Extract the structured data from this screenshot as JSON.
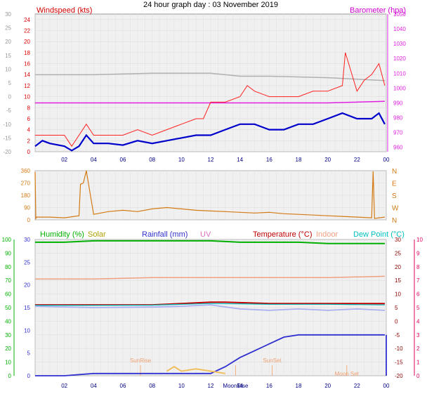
{
  "title": "24 hour graph day : 03 November 2019",
  "colors": {
    "wind": "#e00000",
    "gust": "#ff2020",
    "avg": "#0000cc",
    "baro": "#e020e0",
    "temp_grey": "#b0b0b0",
    "dir": "#d47a14",
    "humidity": "#00b000",
    "solar": "#b0a000",
    "rain": "#3030d0",
    "uv": "#e070c0",
    "temp": "#c00000",
    "indoor": "#f0a080",
    "dew": "#00c0c0",
    "right_red": "#e00060"
  },
  "chart_data": [
    {
      "type": "line",
      "name": "wind",
      "left_label": "Windspeed (kts)",
      "right_label": "Barometer (hpa)",
      "left_ticks": [
        0,
        2,
        4,
        6,
        8,
        10,
        12,
        14,
        16,
        18,
        20,
        22,
        24
      ],
      "outer_left_ticks": [
        -20,
        -15,
        -10,
        -5,
        0,
        5,
        10,
        15,
        20,
        25,
        30
      ],
      "right_ticks": [
        960,
        970,
        980,
        990,
        1000,
        1010,
        1020,
        1030,
        1040,
        1050
      ],
      "x_ticks": [
        "02",
        "04",
        "06",
        "08",
        "10",
        "12",
        "14",
        "16",
        "18",
        "20",
        "22",
        "00"
      ],
      "ylim": [
        0,
        25
      ],
      "series": [
        {
          "role": "gust",
          "x": [
            0,
            1,
            2,
            2.5,
            3,
            3.5,
            4,
            5,
            6,
            7,
            8,
            9,
            10,
            11,
            11.5,
            12,
            13,
            14,
            14.5,
            15,
            16,
            17,
            18,
            19,
            20,
            21,
            21.2,
            22,
            22.5,
            23,
            23.5,
            23.9
          ],
          "values": [
            3,
            3,
            3,
            1,
            3,
            5,
            3,
            3,
            3,
            4,
            3,
            4,
            5,
            6,
            6,
            9,
            9,
            10,
            12,
            11,
            10,
            10,
            10,
            11,
            11,
            12,
            18,
            11,
            13,
            14,
            16,
            12
          ]
        },
        {
          "role": "avg",
          "x": [
            0,
            0.5,
            1,
            2,
            2.5,
            3,
            3.5,
            4,
            5,
            6,
            7,
            8,
            9,
            10,
            11,
            12,
            13,
            14,
            15,
            16,
            17,
            18,
            19,
            20,
            21,
            22,
            23,
            23.5,
            23.9
          ],
          "values": [
            1,
            2,
            1.5,
            1,
            0.2,
            1,
            3,
            1.5,
            1.5,
            1.2,
            2,
            1.5,
            2,
            2.5,
            3,
            3,
            4,
            5,
            5,
            4,
            4,
            5,
            5,
            6,
            7,
            6,
            6,
            7,
            5
          ]
        },
        {
          "role": "baro",
          "x": [
            0,
            4,
            8,
            12,
            16,
            20,
            23.9
          ],
          "values": [
            990,
            990,
            990,
            990,
            990,
            990,
            991
          ]
        },
        {
          "role": "temp_grey",
          "x": [
            0,
            4,
            8,
            12,
            14,
            16,
            20,
            23.9
          ],
          "values": [
            1009,
            1009,
            1010,
            1010,
            1008,
            1008,
            1007,
            1005
          ]
        }
      ]
    },
    {
      "type": "line",
      "name": "direction",
      "left_ticks": [
        0,
        90,
        180,
        270,
        360
      ],
      "right_ticks": [
        "N",
        "W",
        "S",
        "E",
        "N"
      ],
      "x": [
        0,
        0.05,
        0.1,
        1,
        2,
        3,
        3.1,
        3.3,
        3.5,
        4,
        5,
        6,
        7,
        8,
        9,
        10,
        11,
        12,
        13,
        14,
        15,
        16,
        17,
        18,
        19,
        20,
        21,
        22,
        23,
        23.1,
        23.2,
        23.5,
        23.9
      ],
      "values": [
        350,
        10,
        20,
        20,
        15,
        30,
        260,
        270,
        360,
        40,
        60,
        70,
        60,
        80,
        90,
        80,
        70,
        65,
        60,
        55,
        50,
        55,
        45,
        40,
        35,
        30,
        25,
        20,
        15,
        355,
        10,
        15,
        20
      ]
    },
    {
      "type": "line",
      "name": "climate",
      "legend": [
        "Humidity (%)",
        "Solar",
        "Rainfall (mm)",
        "UV",
        "Temperature (°C)",
        "Indoor",
        "Dew Point (°C)"
      ],
      "left_ticks": [
        0,
        10,
        20,
        30,
        40,
        50,
        60,
        70,
        80,
        90,
        100
      ],
      "left_inner_ticks": [
        0,
        5,
        10,
        15,
        20,
        25,
        30
      ],
      "right_inner_ticks": [
        -20,
        -15,
        -10,
        -5,
        0,
        5,
        10,
        15,
        20,
        25,
        30
      ],
      "right_ticks": [
        0,
        1,
        2,
        3,
        4,
        5,
        6,
        7,
        8,
        9,
        10
      ],
      "events": [
        {
          "label": "SunRise",
          "x": 7.2
        },
        {
          "label": "SunSet",
          "x": 16.2
        },
        {
          "label": "MoonRise",
          "x": 13.7
        },
        {
          "label": "Moon Set",
          "x": 21.3
        }
      ],
      "series": [
        {
          "role": "humidity",
          "x": [
            0,
            2,
            4,
            8,
            12,
            14,
            18,
            20,
            23.9
          ],
          "values": [
            98,
            98,
            99,
            99,
            99,
            98,
            98,
            97,
            97
          ]
        },
        {
          "role": "indoor",
          "x": [
            0,
            4,
            8,
            12,
            16,
            20,
            23.9
          ],
          "values": [
            71,
            71,
            72,
            72,
            72,
            72,
            73
          ]
        },
        {
          "role": "temp",
          "x": [
            0,
            4,
            8,
            10,
            12,
            13,
            16,
            18,
            20,
            23.9
          ],
          "values": [
            6,
            6,
            6,
            6.5,
            7,
            7,
            6.5,
            6.5,
            6.5,
            6.5
          ]
        },
        {
          "role": "dew",
          "x": [
            0,
            4,
            8,
            10,
            12,
            14,
            16,
            18,
            20,
            23.9
          ],
          "values": [
            5.8,
            5.8,
            5.9,
            6.2,
            6.5,
            6.4,
            6.2,
            6.2,
            6.2,
            6
          ]
        },
        {
          "role": "dewlight",
          "x": [
            0,
            4,
            8,
            10,
            12,
            14,
            16,
            18,
            20,
            22,
            23.9
          ],
          "values": [
            5.5,
            5,
            5.2,
            5.5,
            6,
            4.5,
            4,
            4.5,
            4,
            4.5,
            4
          ]
        },
        {
          "role": "rain",
          "x": [
            0,
            2,
            4,
            8,
            12,
            13,
            14,
            15,
            16,
            17,
            18,
            20,
            23.9
          ],
          "values": [
            0,
            0,
            0.5,
            0.5,
            0.5,
            2,
            4,
            5.5,
            7,
            8.5,
            9,
            9,
            9
          ]
        },
        {
          "role": "solar",
          "x": [
            9,
            9.5,
            10,
            11,
            12,
            13
          ],
          "values": [
            1,
            2,
            1,
            1.5,
            1,
            0.5
          ]
        }
      ]
    }
  ]
}
